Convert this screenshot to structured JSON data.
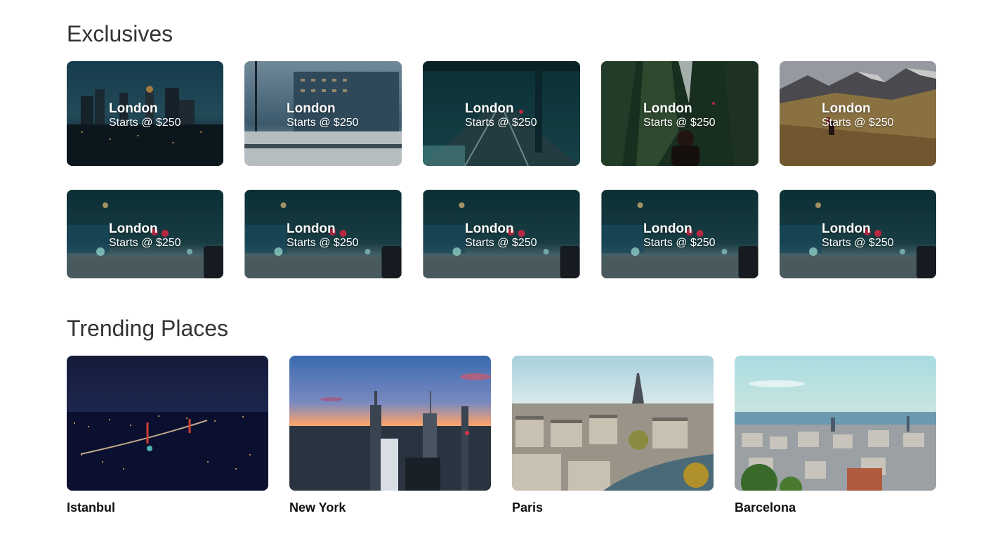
{
  "exclusives": {
    "title": "Exclusives",
    "rows": [
      [
        {
          "city": "London",
          "price": "Starts @ $250",
          "image": "city-skyline-dusk"
        },
        {
          "city": "London",
          "price": "Starts @ $250",
          "image": "snowy-street-office"
        },
        {
          "city": "London",
          "price": "Starts @ $250",
          "image": "train-station-platform"
        },
        {
          "city": "London",
          "price": "Starts @ $250",
          "image": "forest-hiker"
        },
        {
          "city": "London",
          "price": "Starts @ $250",
          "image": "mountain-hiker"
        }
      ],
      [
        {
          "city": "London",
          "price": "Starts @ $250",
          "image": "snowy-night-street"
        },
        {
          "city": "London",
          "price": "Starts @ $250",
          "image": "snowy-night-street"
        },
        {
          "city": "London",
          "price": "Starts @ $250",
          "image": "snowy-night-street"
        },
        {
          "city": "London",
          "price": "Starts @ $250",
          "image": "snowy-night-street"
        },
        {
          "city": "London",
          "price": "Starts @ $250",
          "image": "snowy-night-street"
        }
      ]
    ]
  },
  "trending": {
    "title": "Trending Places",
    "places": [
      {
        "name": "Istanbul",
        "image": "istanbul-night-bridge"
      },
      {
        "name": "New York",
        "image": "new-york-sunset-skyline"
      },
      {
        "name": "Paris",
        "image": "paris-eiffel-cityscape"
      },
      {
        "name": "Barcelona",
        "image": "barcelona-aerial-sea"
      }
    ]
  }
}
